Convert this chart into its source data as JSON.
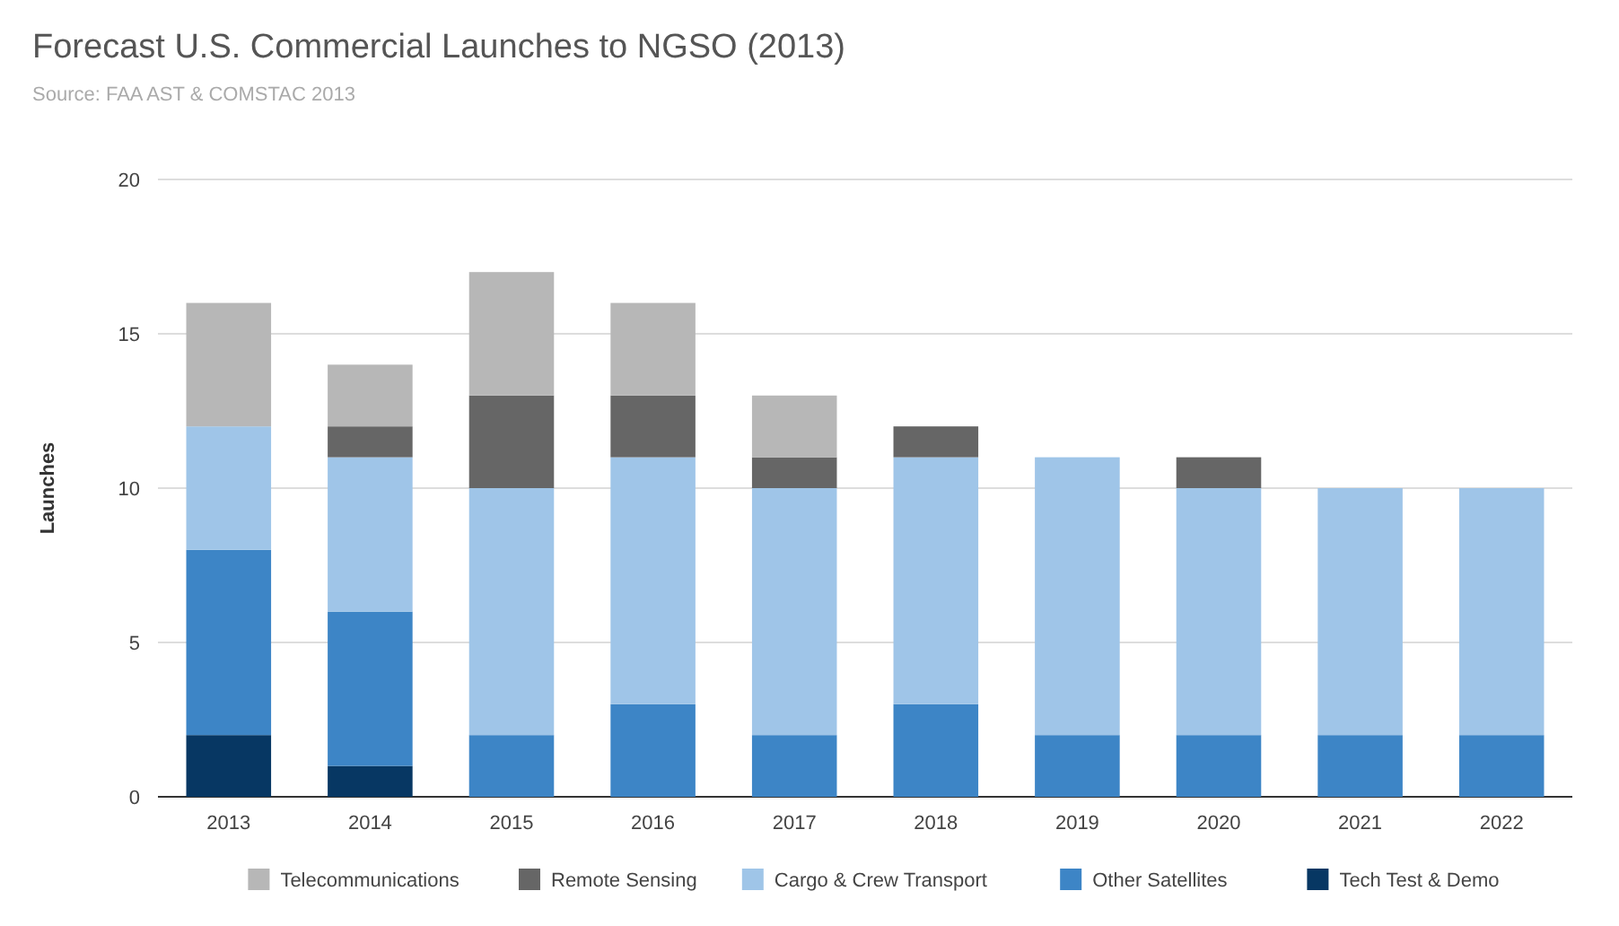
{
  "chart_data": {
    "type": "bar",
    "title": "Forecast U.S. Commercial Launches to NGSO (2013)",
    "subtitle": "Source: FAA AST & COMSTAC 2013",
    "ylabel": "Launches",
    "categories": [
      "2013",
      "2014",
      "2015",
      "2016",
      "2017",
      "2018",
      "2019",
      "2020",
      "2021",
      "2022"
    ],
    "stacked": true,
    "ylim": [
      0,
      20
    ],
    "yticks": [
      0,
      5,
      10,
      15,
      20
    ],
    "grid": "y",
    "legend": "bottom",
    "series": [
      {
        "name": "Tech Test & Demo",
        "color": "#073763",
        "values": [
          2,
          1,
          0,
          0,
          0,
          0,
          0,
          0,
          0,
          0
        ]
      },
      {
        "name": "Other Satellites",
        "color": "#3d85c6",
        "values": [
          6,
          5,
          2,
          3,
          2,
          3,
          2,
          2,
          2,
          2
        ]
      },
      {
        "name": "Cargo & Crew Transport",
        "color": "#9fc5e8",
        "values": [
          4,
          5,
          8,
          8,
          8,
          8,
          9,
          8,
          8,
          8
        ]
      },
      {
        "name": "Remote Sensing",
        "color": "#666666",
        "values": [
          0,
          1,
          3,
          2,
          1,
          1,
          0,
          1,
          0,
          0
        ]
      },
      {
        "name": "Telecommunications",
        "color": "#b7b7b7",
        "values": [
          4,
          2,
          4,
          3,
          2,
          0,
          0,
          0,
          0,
          0
        ]
      }
    ]
  }
}
